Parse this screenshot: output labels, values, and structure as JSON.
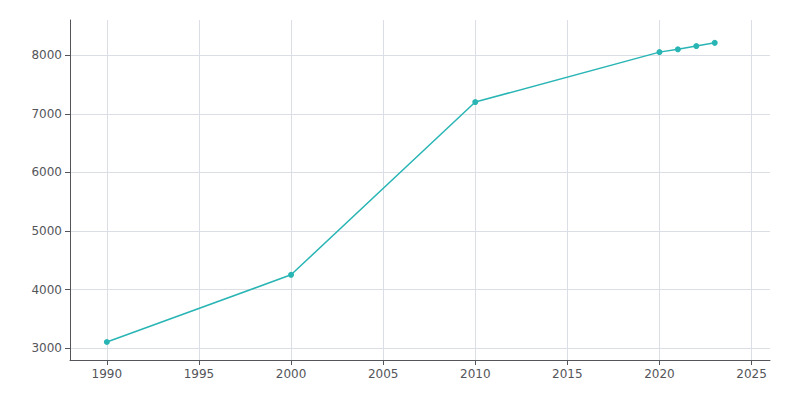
{
  "chart_data": {
    "type": "line",
    "x": [
      1990,
      2000,
      2010,
      2020,
      2021,
      2022,
      2023
    ],
    "values": [
      3107,
      4253,
      7200,
      8052,
      8100,
      8155,
      8210
    ],
    "color": "#2ab5b5",
    "marker": "circle",
    "xlim": [
      1988,
      2026
    ],
    "xticks": [
      1990,
      1995,
      2000,
      2005,
      2010,
      2015,
      2020,
      2025
    ],
    "ylim": [
      2800,
      8600
    ],
    "yticks": [
      3000,
      4000,
      5000,
      6000,
      7000,
      8000
    ],
    "grid": true
  }
}
